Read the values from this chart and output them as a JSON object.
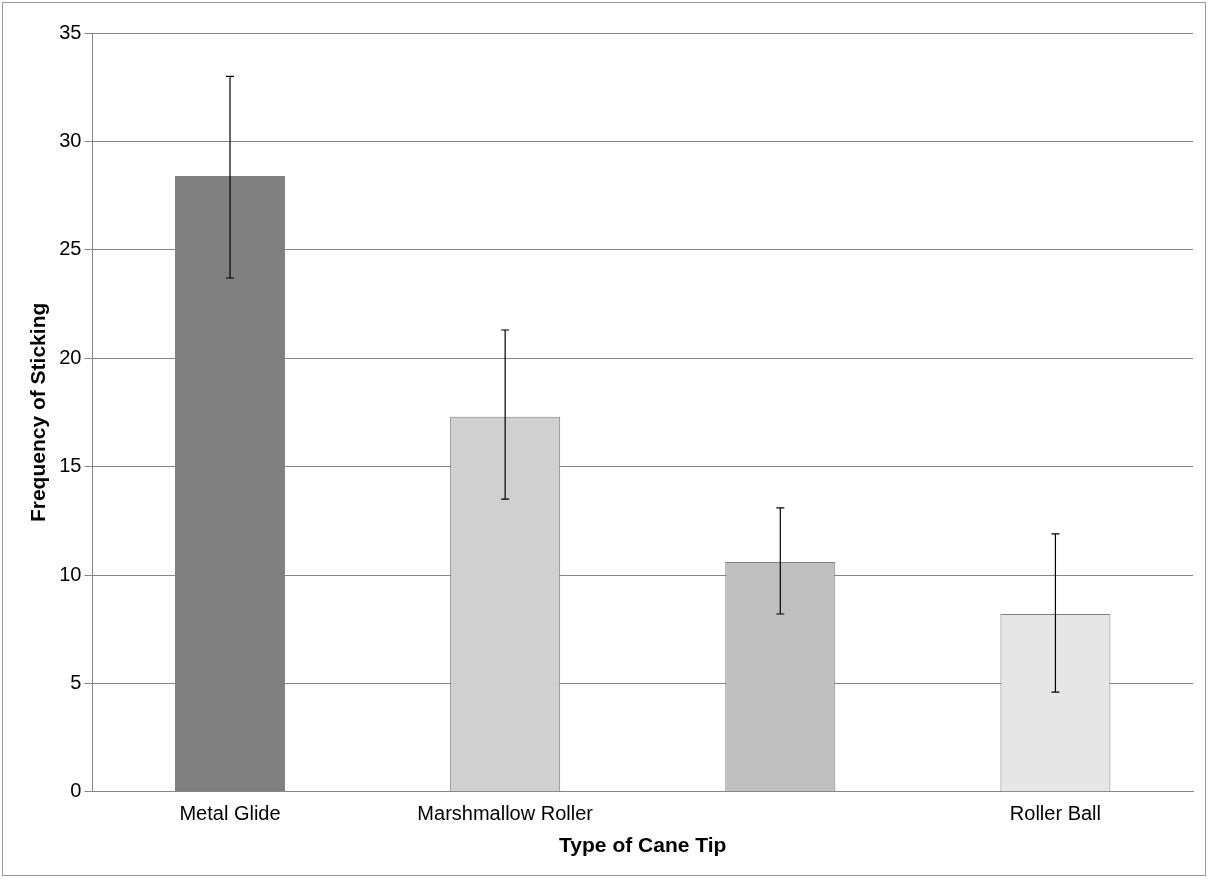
{
  "chart_data": {
    "type": "bar",
    "xlabel": "Type of Cane Tip",
    "ylabel": "Frequency of Sticking",
    "categories": [
      "Metal Glide",
      "Marshmallow Roller",
      null,
      "Roller Ball"
    ],
    "values": [
      28.4,
      17.3,
      10.6,
      8.2
    ],
    "colors": [
      "#808080",
      "#d0d0d0",
      "#bfbfbf",
      "#e6e6e6"
    ],
    "errors": [
      [
        23.7,
        33.0
      ],
      [
        13.5,
        21.3
      ],
      [
        8.2,
        13.1
      ],
      [
        4.6,
        11.9
      ]
    ],
    "ylim": [
      0,
      35
    ],
    "yticks": [
      0,
      5,
      10,
      15,
      20,
      25,
      30,
      35
    ],
    "grid": "y",
    "legend": false
  }
}
